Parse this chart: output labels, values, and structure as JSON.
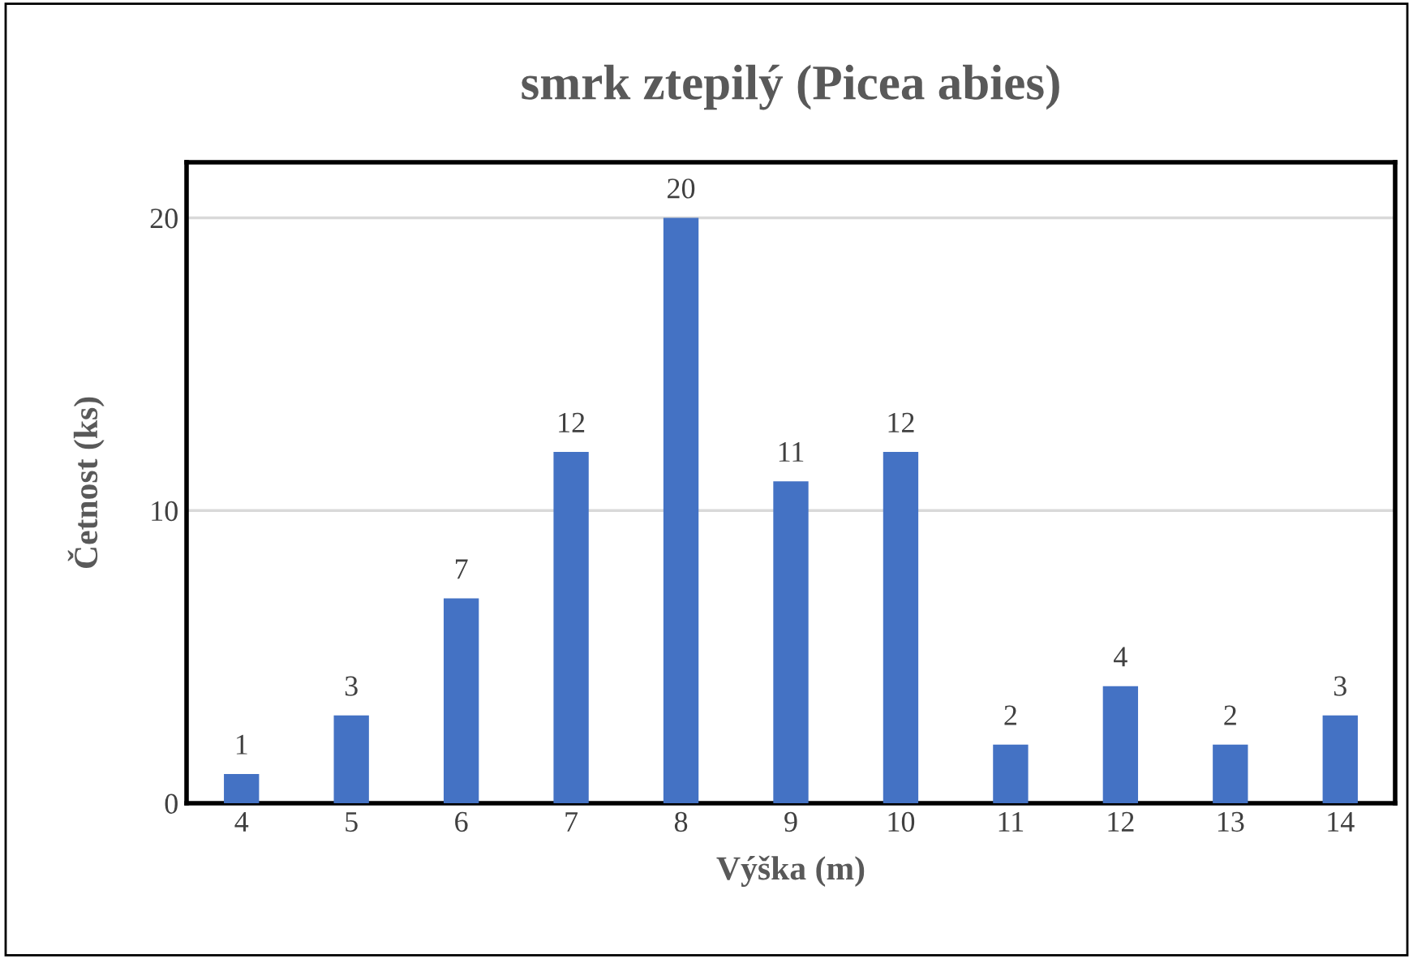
{
  "chart_data": {
    "type": "bar",
    "title": "smrk ztepilý (Picea abies)",
    "xlabel": "Výška (m)",
    "ylabel": "Četnost (ks)",
    "categories": [
      "4",
      "5",
      "6",
      "7",
      "8",
      "9",
      "10",
      "11",
      "12",
      "13",
      "14"
    ],
    "values": [
      1,
      3,
      7,
      12,
      20,
      11,
      12,
      2,
      4,
      2,
      3
    ],
    "color": "#4472c4",
    "ylim": [
      0,
      21.9
    ],
    "yticks": [
      0,
      10,
      20
    ],
    "grid": "y",
    "data_labels": true
  }
}
